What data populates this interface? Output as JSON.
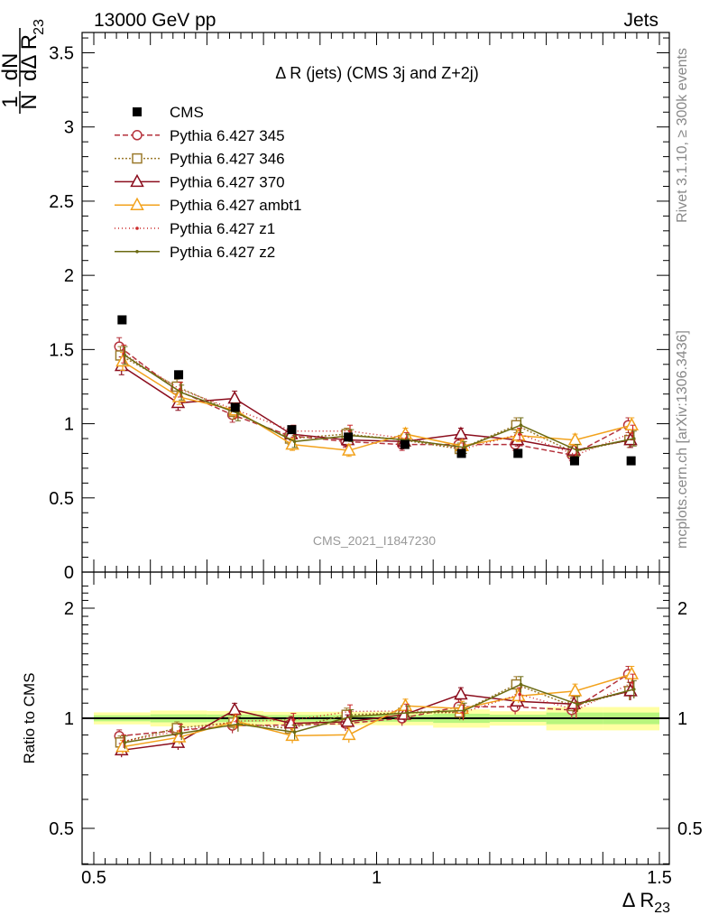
{
  "header": {
    "energy_label": "13000 GeV pp",
    "process_label": "Jets"
  },
  "plot_title": "Δ R (jets) (CMS 3j and Z+2j)",
  "side_labels": {
    "rivet": "Rivet 3.1.10, ≥ 300k events",
    "mcplots": "mcplots.cern.ch [arXiv:1306.3436]"
  },
  "watermark": "CMS_2021_I1847230",
  "axis": {
    "ylabel_main": "1/N dN/dΔR23",
    "ylabel_ratio": "Ratio to CMS",
    "xlabel": "Δ R23"
  },
  "chart_data": {
    "type": "line",
    "x": [
      0.55,
      0.65,
      0.75,
      0.85,
      0.95,
      1.05,
      1.15,
      1.25,
      1.35,
      1.45
    ],
    "xlim": [
      0.5,
      1.5
    ],
    "ylim_main": [
      0,
      3.65
    ],
    "ylim_ratio": [
      0.4,
      2.3
    ],
    "ratio_scale": "log",
    "x_ticks": [
      "0.5",
      "1",
      "1.5"
    ],
    "y_ticks_main": [
      "0",
      "0.5",
      "1",
      "1.5",
      "2",
      "2.5",
      "3",
      "3.5"
    ],
    "y_ticks_ratio": [
      "0.5",
      "1",
      "2"
    ],
    "legend_position": "top-left",
    "grid": false,
    "reference": {
      "name": "CMS",
      "color": "#000000",
      "values": [
        1.7,
        1.33,
        1.11,
        0.96,
        0.91,
        0.86,
        0.8,
        0.8,
        0.75,
        0.75
      ],
      "band": [
        0.03,
        0.04,
        0.03,
        0.02,
        0.02,
        0.02,
        0.03,
        0.02,
        0.04,
        0.04
      ]
    },
    "series": [
      {
        "name": "Pythia 6.427 345",
        "color": "#b5323c",
        "dash": "6,3",
        "marker": "circle",
        "values": [
          1.52,
          1.23,
          1.06,
          0.92,
          0.88,
          0.86,
          0.86,
          0.86,
          0.79,
          0.99
        ],
        "errors": [
          0.06,
          0.05,
          0.05,
          0.04,
          0.04,
          0.04,
          0.04,
          0.04,
          0.04,
          0.05
        ]
      },
      {
        "name": "Pythia 6.427 346",
        "color": "#9b7a2c",
        "dash": "2,2",
        "marker": "square",
        "values": [
          1.46,
          1.25,
          1.08,
          0.9,
          0.93,
          0.89,
          0.83,
          0.99,
          0.81,
          0.89
        ],
        "errors": [
          0.06,
          0.05,
          0.05,
          0.04,
          0.04,
          0.04,
          0.04,
          0.05,
          0.04,
          0.05
        ]
      },
      {
        "name": "Pythia 6.427 370",
        "color": "#8b0d1d",
        "dash": "",
        "marker": "triangle",
        "values": [
          1.39,
          1.14,
          1.17,
          0.93,
          0.89,
          0.88,
          0.93,
          0.89,
          0.82,
          0.89
        ],
        "errors": [
          0.06,
          0.05,
          0.05,
          0.04,
          0.04,
          0.04,
          0.04,
          0.04,
          0.04,
          0.05
        ]
      },
      {
        "name": "Pythia 6.427 ambt1",
        "color": "#f2a21c",
        "dash": "",
        "marker": "triangle",
        "values": [
          1.42,
          1.18,
          1.09,
          0.86,
          0.82,
          0.93,
          0.85,
          0.92,
          0.89,
          0.99
        ],
        "errors": [
          0.06,
          0.05,
          0.05,
          0.04,
          0.04,
          0.04,
          0.04,
          0.04,
          0.04,
          0.05
        ]
      },
      {
        "name": "Pythia 6.427 z1",
        "color": "#cc2a2a",
        "dash": "1,3",
        "marker": "dot",
        "values": [
          1.47,
          1.23,
          1.09,
          0.95,
          0.95,
          0.9,
          0.83,
          0.93,
          0.79,
          0.94
        ],
        "errors": [
          0.06,
          0.05,
          0.05,
          0.04,
          0.04,
          0.04,
          0.04,
          0.04,
          0.04,
          0.05
        ]
      },
      {
        "name": "Pythia 6.427 z2",
        "color": "#6b6a12",
        "dash": "",
        "marker": "dot",
        "values": [
          1.46,
          1.21,
          1.07,
          0.88,
          0.92,
          0.89,
          0.84,
          0.99,
          0.82,
          0.9
        ],
        "errors": [
          0.06,
          0.05,
          0.05,
          0.04,
          0.04,
          0.04,
          0.04,
          0.05,
          0.04,
          0.05
        ]
      }
    ]
  }
}
